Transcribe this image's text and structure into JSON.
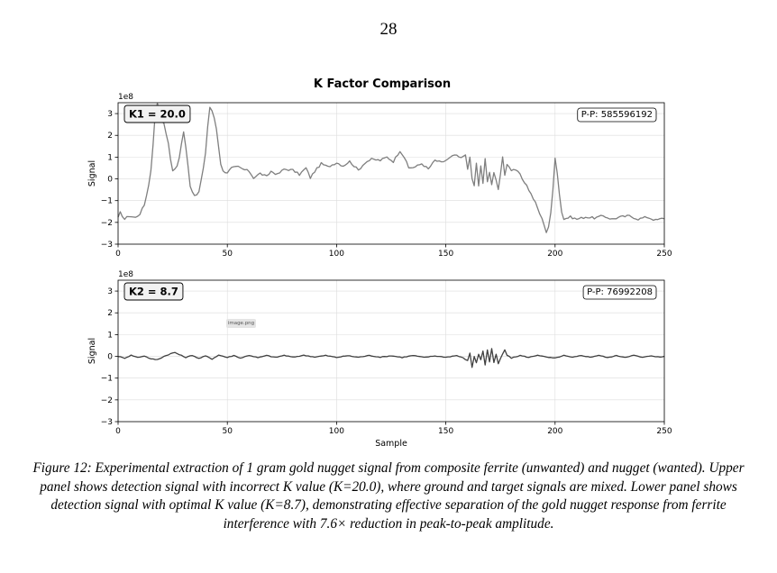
{
  "page_number": "28",
  "figure_title": "K Factor Comparison",
  "image_tag": "image.png",
  "caption": "Figure 12: Experimental extraction of 1 gram gold nugget signal from composite ferrite (unwanted) and nugget (wanted). Upper panel shows detection signal with incorrect K value (K=20.0), where ground and target signals are mixed. Lower panel shows detection signal with optimal K value (K=8.7), demonstrating effective separation of the gold nugget response from ferrite interference with 7.6× reduction in peak-to-peak amplitude.",
  "chart_data": [
    {
      "type": "line",
      "title": "",
      "xlabel": "",
      "ylabel": "Signal",
      "y_scale_label": "1e8",
      "xlim": [
        0,
        250
      ],
      "ylim": [
        -3,
        3.5
      ],
      "xticks": [
        0,
        50,
        100,
        150,
        200,
        250
      ],
      "yticks": [
        -3,
        -2,
        -1,
        0,
        1,
        2,
        3
      ],
      "ytick_labels": [
        "−3",
        "−2",
        "−1",
        "0",
        "1",
        "2",
        "3"
      ],
      "grid": true,
      "line_color": "#7f7f7f",
      "k_label": "K1 = 20.0",
      "pp_label": "P-P: 585596192",
      "keypoints": [
        [
          0,
          -1.8
        ],
        [
          1,
          -1.55
        ],
        [
          3,
          -1.85
        ],
        [
          5,
          -1.7
        ],
        [
          8,
          -1.78
        ],
        [
          10,
          -1.6
        ],
        [
          12,
          -1.2
        ],
        [
          14,
          -0.3
        ],
        [
          15,
          0.4
        ],
        [
          16,
          1.6
        ],
        [
          17,
          3.0
        ],
        [
          18,
          3.5
        ],
        [
          19,
          3.1
        ],
        [
          20,
          2.7
        ],
        [
          21,
          2.5
        ],
        [
          22,
          2.1
        ],
        [
          23,
          1.6
        ],
        [
          24,
          0.9
        ],
        [
          25,
          0.4
        ],
        [
          26,
          0.45
        ],
        [
          27,
          0.6
        ],
        [
          28,
          0.95
        ],
        [
          29,
          1.6
        ],
        [
          30,
          2.2
        ],
        [
          31,
          1.5
        ],
        [
          32,
          0.6
        ],
        [
          33,
          -0.3
        ],
        [
          34,
          -0.65
        ],
        [
          35,
          -0.75
        ],
        [
          36,
          -0.75
        ],
        [
          37,
          -0.6
        ],
        [
          38,
          -0.1
        ],
        [
          39,
          0.5
        ],
        [
          40,
          1.2
        ],
        [
          41,
          2.4
        ],
        [
          42,
          3.3
        ],
        [
          43,
          3.1
        ],
        [
          44,
          2.8
        ],
        [
          45,
          2.3
        ],
        [
          46,
          1.5
        ],
        [
          47,
          0.7
        ],
        [
          48,
          0.35
        ],
        [
          50,
          0.3
        ],
        [
          52,
          0.5
        ],
        [
          55,
          0.55
        ],
        [
          57,
          0.45
        ],
        [
          60,
          0.35
        ],
        [
          62,
          0.05
        ],
        [
          65,
          0.25
        ],
        [
          68,
          0.1
        ],
        [
          70,
          0.35
        ],
        [
          73,
          0.2
        ],
        [
          76,
          0.45
        ],
        [
          80,
          0.4
        ],
        [
          83,
          0.2
        ],
        [
          86,
          0.5
        ],
        [
          88,
          0.05
        ],
        [
          90,
          0.35
        ],
        [
          93,
          0.7
        ],
        [
          96,
          0.55
        ],
        [
          100,
          0.75
        ],
        [
          103,
          0.6
        ],
        [
          106,
          0.8
        ],
        [
          110,
          0.4
        ],
        [
          113,
          0.75
        ],
        [
          116,
          0.9
        ],
        [
          120,
          0.85
        ],
        [
          123,
          1.0
        ],
        [
          126,
          0.8
        ],
        [
          129,
          1.3
        ],
        [
          131,
          1.0
        ],
        [
          133,
          0.5
        ],
        [
          136,
          0.55
        ],
        [
          139,
          0.7
        ],
        [
          142,
          0.45
        ],
        [
          145,
          0.85
        ],
        [
          148,
          0.75
        ],
        [
          151,
          0.9
        ],
        [
          154,
          1.1
        ],
        [
          157,
          0.95
        ],
        [
          159,
          1.15
        ],
        [
          160,
          0.4
        ],
        [
          161,
          1.0
        ],
        [
          162,
          0.0
        ],
        [
          163,
          -0.3
        ],
        [
          164,
          0.7
        ],
        [
          165,
          -0.35
        ],
        [
          166,
          0.6
        ],
        [
          167,
          -0.2
        ],
        [
          168,
          0.9
        ],
        [
          169,
          -0.15
        ],
        [
          170,
          0.35
        ],
        [
          171,
          -0.25
        ],
        [
          172,
          0.3
        ],
        [
          174,
          -0.5
        ],
        [
          176,
          1.0
        ],
        [
          177,
          0.2
        ],
        [
          178,
          0.7
        ],
        [
          180,
          0.4
        ],
        [
          183,
          0.35
        ],
        [
          185,
          0.0
        ],
        [
          187,
          -0.3
        ],
        [
          189,
          -0.7
        ],
        [
          191,
          -1.1
        ],
        [
          193,
          -1.6
        ],
        [
          195,
          -2.1
        ],
        [
          196,
          -2.45
        ],
        [
          197,
          -2.2
        ],
        [
          198,
          -1.6
        ],
        [
          199,
          -0.5
        ],
        [
          200,
          1.0
        ],
        [
          201,
          0.3
        ],
        [
          202,
          -0.7
        ],
        [
          203,
          -1.5
        ],
        [
          204,
          -1.85
        ],
        [
          207,
          -1.75
        ],
        [
          210,
          -1.85
        ],
        [
          214,
          -1.75
        ],
        [
          218,
          -1.8
        ],
        [
          222,
          -1.7
        ],
        [
          226,
          -1.85
        ],
        [
          230,
          -1.75
        ],
        [
          234,
          -1.7
        ],
        [
          238,
          -1.85
        ],
        [
          242,
          -1.75
        ],
        [
          246,
          -1.9
        ],
        [
          250,
          -1.8
        ]
      ]
    },
    {
      "type": "line",
      "title": "",
      "xlabel": "Sample",
      "ylabel": "Signal",
      "y_scale_label": "1e8",
      "xlim": [
        0,
        250
      ],
      "ylim": [
        -3,
        3.5
      ],
      "xticks": [
        0,
        50,
        100,
        150,
        200,
        250
      ],
      "yticks": [
        -3,
        -2,
        -1,
        0,
        1,
        2,
        3
      ],
      "ytick_labels": [
        "−3",
        "−2",
        "−1",
        "0",
        "1",
        "2",
        "3"
      ],
      "grid": true,
      "line_color": "#404040",
      "k_label": "K2 = 8.7",
      "pp_label": "P-P: 76992208",
      "keypoints": [
        [
          0,
          0.0
        ],
        [
          3,
          -0.08
        ],
        [
          6,
          0.05
        ],
        [
          9,
          -0.05
        ],
        [
          12,
          0.02
        ],
        [
          15,
          -0.12
        ],
        [
          18,
          -0.15
        ],
        [
          21,
          0.0
        ],
        [
          24,
          0.12
        ],
        [
          26,
          0.18
        ],
        [
          28,
          0.08
        ],
        [
          31,
          -0.05
        ],
        [
          34,
          0.05
        ],
        [
          37,
          -0.1
        ],
        [
          40,
          0.02
        ],
        [
          43,
          -0.12
        ],
        [
          46,
          0.06
        ],
        [
          50,
          -0.05
        ],
        [
          53,
          0.04
        ],
        [
          56,
          -0.08
        ],
        [
          60,
          0.05
        ],
        [
          64,
          -0.06
        ],
        [
          68,
          0.04
        ],
        [
          72,
          -0.05
        ],
        [
          76,
          0.05
        ],
        [
          80,
          -0.04
        ],
        [
          85,
          0.05
        ],
        [
          90,
          -0.03
        ],
        [
          95,
          0.04
        ],
        [
          100,
          -0.05
        ],
        [
          105,
          0.03
        ],
        [
          110,
          -0.04
        ],
        [
          115,
          0.04
        ],
        [
          120,
          -0.04
        ],
        [
          125,
          0.03
        ],
        [
          130,
          -0.05
        ],
        [
          135,
          0.04
        ],
        [
          140,
          -0.05
        ],
        [
          145,
          0.02
        ],
        [
          150,
          -0.04
        ],
        [
          155,
          0.04
        ],
        [
          158,
          -0.08
        ],
        [
          160,
          -0.2
        ],
        [
          161,
          0.15
        ],
        [
          162,
          -0.5
        ],
        [
          163,
          0.0
        ],
        [
          164,
          -0.3
        ],
        [
          165,
          0.1
        ],
        [
          166,
          -0.15
        ],
        [
          167,
          0.25
        ],
        [
          168,
          -0.4
        ],
        [
          169,
          0.3
        ],
        [
          170,
          -0.25
        ],
        [
          171,
          0.35
        ],
        [
          172,
          -0.3
        ],
        [
          173,
          0.1
        ],
        [
          174,
          -0.35
        ],
        [
          175,
          -0.1
        ],
        [
          176,
          0.1
        ],
        [
          177,
          0.3
        ],
        [
          178,
          0.05
        ],
        [
          180,
          -0.08
        ],
        [
          184,
          0.04
        ],
        [
          188,
          -0.05
        ],
        [
          192,
          0.06
        ],
        [
          196,
          -0.04
        ],
        [
          200,
          -0.08
        ],
        [
          204,
          0.04
        ],
        [
          208,
          -0.05
        ],
        [
          212,
          0.04
        ],
        [
          216,
          -0.04
        ],
        [
          220,
          0.05
        ],
        [
          224,
          -0.06
        ],
        [
          228,
          0.03
        ],
        [
          232,
          -0.04
        ],
        [
          236,
          0.05
        ],
        [
          240,
          -0.05
        ],
        [
          244,
          0.03
        ],
        [
          248,
          -0.04
        ],
        [
          250,
          0.0
        ]
      ]
    }
  ]
}
